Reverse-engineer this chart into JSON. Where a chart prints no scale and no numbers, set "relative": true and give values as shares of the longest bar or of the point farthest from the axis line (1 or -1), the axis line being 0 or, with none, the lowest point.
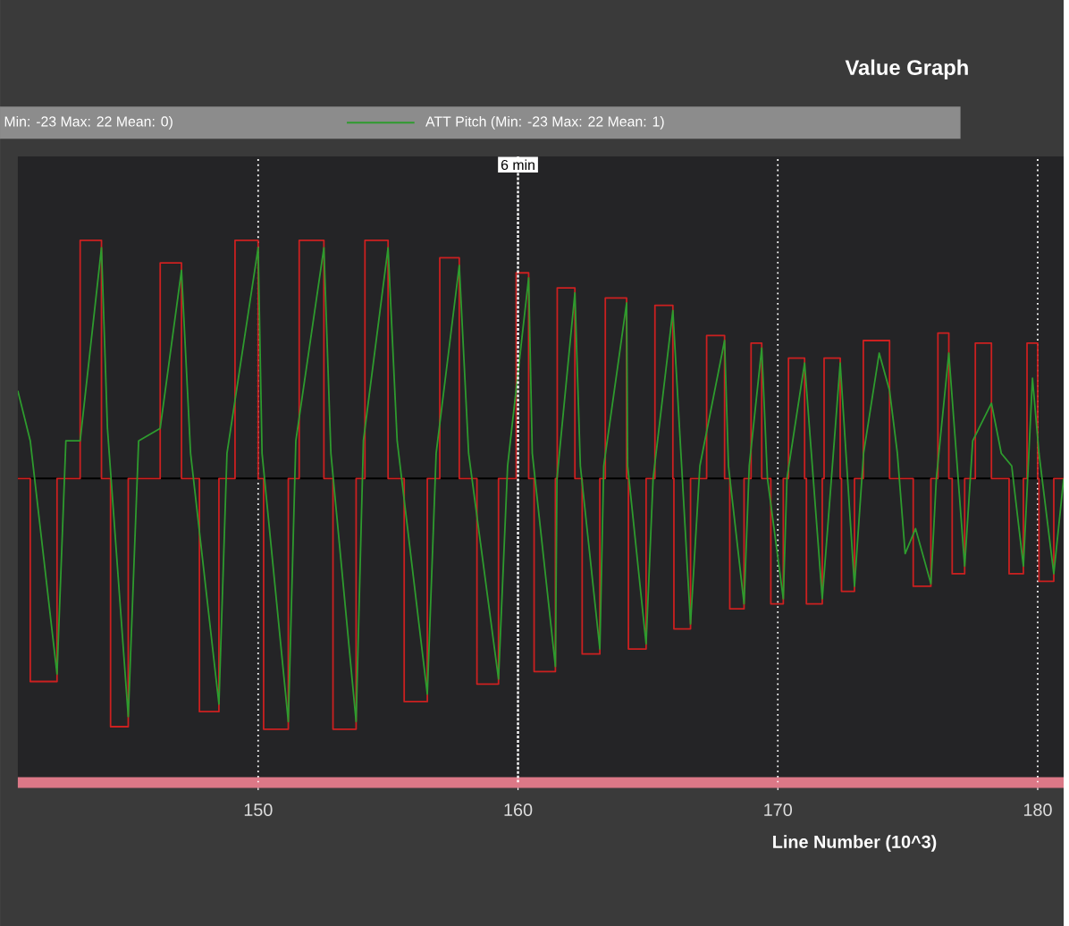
{
  "chart_data": {
    "type": "line",
    "title": "Value Graph",
    "xlabel": "Line Number (10^3)",
    "xlim": [
      140.75,
      181.0
    ],
    "xticks": [
      150,
      160,
      170,
      180
    ],
    "grid": "x",
    "legend": "top",
    "relative": true,
    "annotations": [
      "Min: -23 Max: 22 Mean: 0)"
    ],
    "ref_lines": [
      {
        "axis": "x",
        "value": 160,
        "label": "6 min"
      }
    ],
    "series": [
      {
        "type": "step",
        "color": "#cc2020",
        "x": [
          140.75,
          141.23,
          142.26,
          143.15,
          143.97,
          144.32,
          145.0,
          146.23,
          147.05,
          147.74,
          148.49,
          149.11,
          150.0,
          150.21,
          151.16,
          151.58,
          152.53,
          152.88,
          153.77,
          154.11,
          155.0,
          155.62,
          156.51,
          156.99,
          157.74,
          158.42,
          159.25,
          159.93,
          160.41,
          160.62,
          161.44,
          161.51,
          162.19,
          162.47,
          163.15,
          163.36,
          164.18,
          164.25,
          164.93,
          165.27,
          165.96,
          166.0,
          166.64,
          167.26,
          167.95,
          168.15,
          168.7,
          168.97,
          169.38,
          169.73,
          170.21,
          170.41,
          171.03,
          171.1,
          171.71,
          171.78,
          172.4,
          172.45,
          172.95,
          173.29,
          174.3,
          175.21,
          175.89,
          176.16,
          176.58,
          176.71,
          177.19,
          177.6,
          178.22,
          178.9,
          179.45,
          179.59,
          180.0,
          180.05,
          180.62,
          181.0
        ],
        "values": [
          0,
          -0.81,
          0,
          0.95,
          0,
          -0.99,
          0,
          0.86,
          0,
          -0.93,
          0,
          0.95,
          0,
          -1.0,
          0,
          0.95,
          0,
          -1.0,
          0,
          0.95,
          0,
          -0.89,
          0,
          0.88,
          0,
          -0.82,
          0,
          0.82,
          0,
          -0.77,
          0,
          0.76,
          0,
          -0.7,
          0,
          0.72,
          0,
          -0.68,
          0,
          0.69,
          0,
          -0.6,
          0,
          0.57,
          0,
          -0.52,
          0,
          0.54,
          0,
          -0.5,
          0,
          0.48,
          0,
          -0.5,
          0,
          0.48,
          0,
          -0.45,
          0,
          0.55,
          0,
          -0.43,
          0,
          0.58,
          0,
          -0.38,
          0,
          0.54,
          0,
          -0.38,
          0,
          0.54,
          0,
          -0.41,
          0,
          0
        ]
      },
      {
        "name": "ATT Pitch (Min: -23 Max: 22 Mean: 1)",
        "color": "#2e9b2e",
        "x": [
          140.75,
          141.23,
          142.26,
          142.6,
          143.15,
          143.97,
          144.2,
          145.0,
          145.4,
          146.23,
          147.05,
          147.4,
          148.49,
          148.8,
          150.0,
          150.15,
          151.16,
          151.45,
          152.53,
          152.8,
          153.77,
          154.05,
          155.0,
          155.35,
          156.51,
          156.85,
          157.74,
          158.1,
          159.25,
          159.6,
          160.41,
          160.55,
          161.44,
          161.5,
          162.19,
          162.4,
          163.15,
          163.3,
          164.18,
          164.22,
          164.93,
          165.2,
          165.96,
          166.64,
          167.0,
          167.95,
          168.1,
          168.7,
          168.9,
          169.38,
          169.6,
          170.21,
          170.35,
          171.03,
          171.71,
          172.4,
          172.95,
          173.3,
          173.9,
          174.3,
          174.6,
          174.9,
          175.3,
          175.89,
          176.1,
          176.58,
          177.19,
          177.5,
          178.22,
          178.6,
          179.0,
          179.45,
          179.8,
          180.05,
          180.62,
          181.0
        ],
        "values": [
          0.35,
          0.15,
          -0.78,
          0.15,
          0.15,
          0.92,
          0.2,
          -0.95,
          0.15,
          0.2,
          0.83,
          0.1,
          -0.9,
          0.1,
          0.92,
          0.1,
          -0.97,
          0.15,
          0.92,
          0.1,
          -0.97,
          0.15,
          0.92,
          0.15,
          -0.86,
          0.1,
          0.85,
          0.1,
          -0.8,
          0.05,
          0.8,
          0.1,
          -0.75,
          0,
          0.74,
          0.05,
          -0.68,
          0.05,
          0.7,
          0.05,
          -0.66,
          0,
          0.67,
          -0.58,
          0.05,
          0.55,
          0.05,
          -0.5,
          0.05,
          0.52,
          0,
          -0.48,
          0,
          0.46,
          -0.48,
          0.46,
          -0.43,
          0.1,
          0.5,
          0.35,
          0.1,
          -0.3,
          -0.2,
          -0.42,
          0,
          0.5,
          -0.35,
          0.15,
          0.3,
          0.1,
          0.05,
          -0.35,
          0.4,
          0.1,
          -0.38,
          0
        ]
      }
    ]
  }
}
